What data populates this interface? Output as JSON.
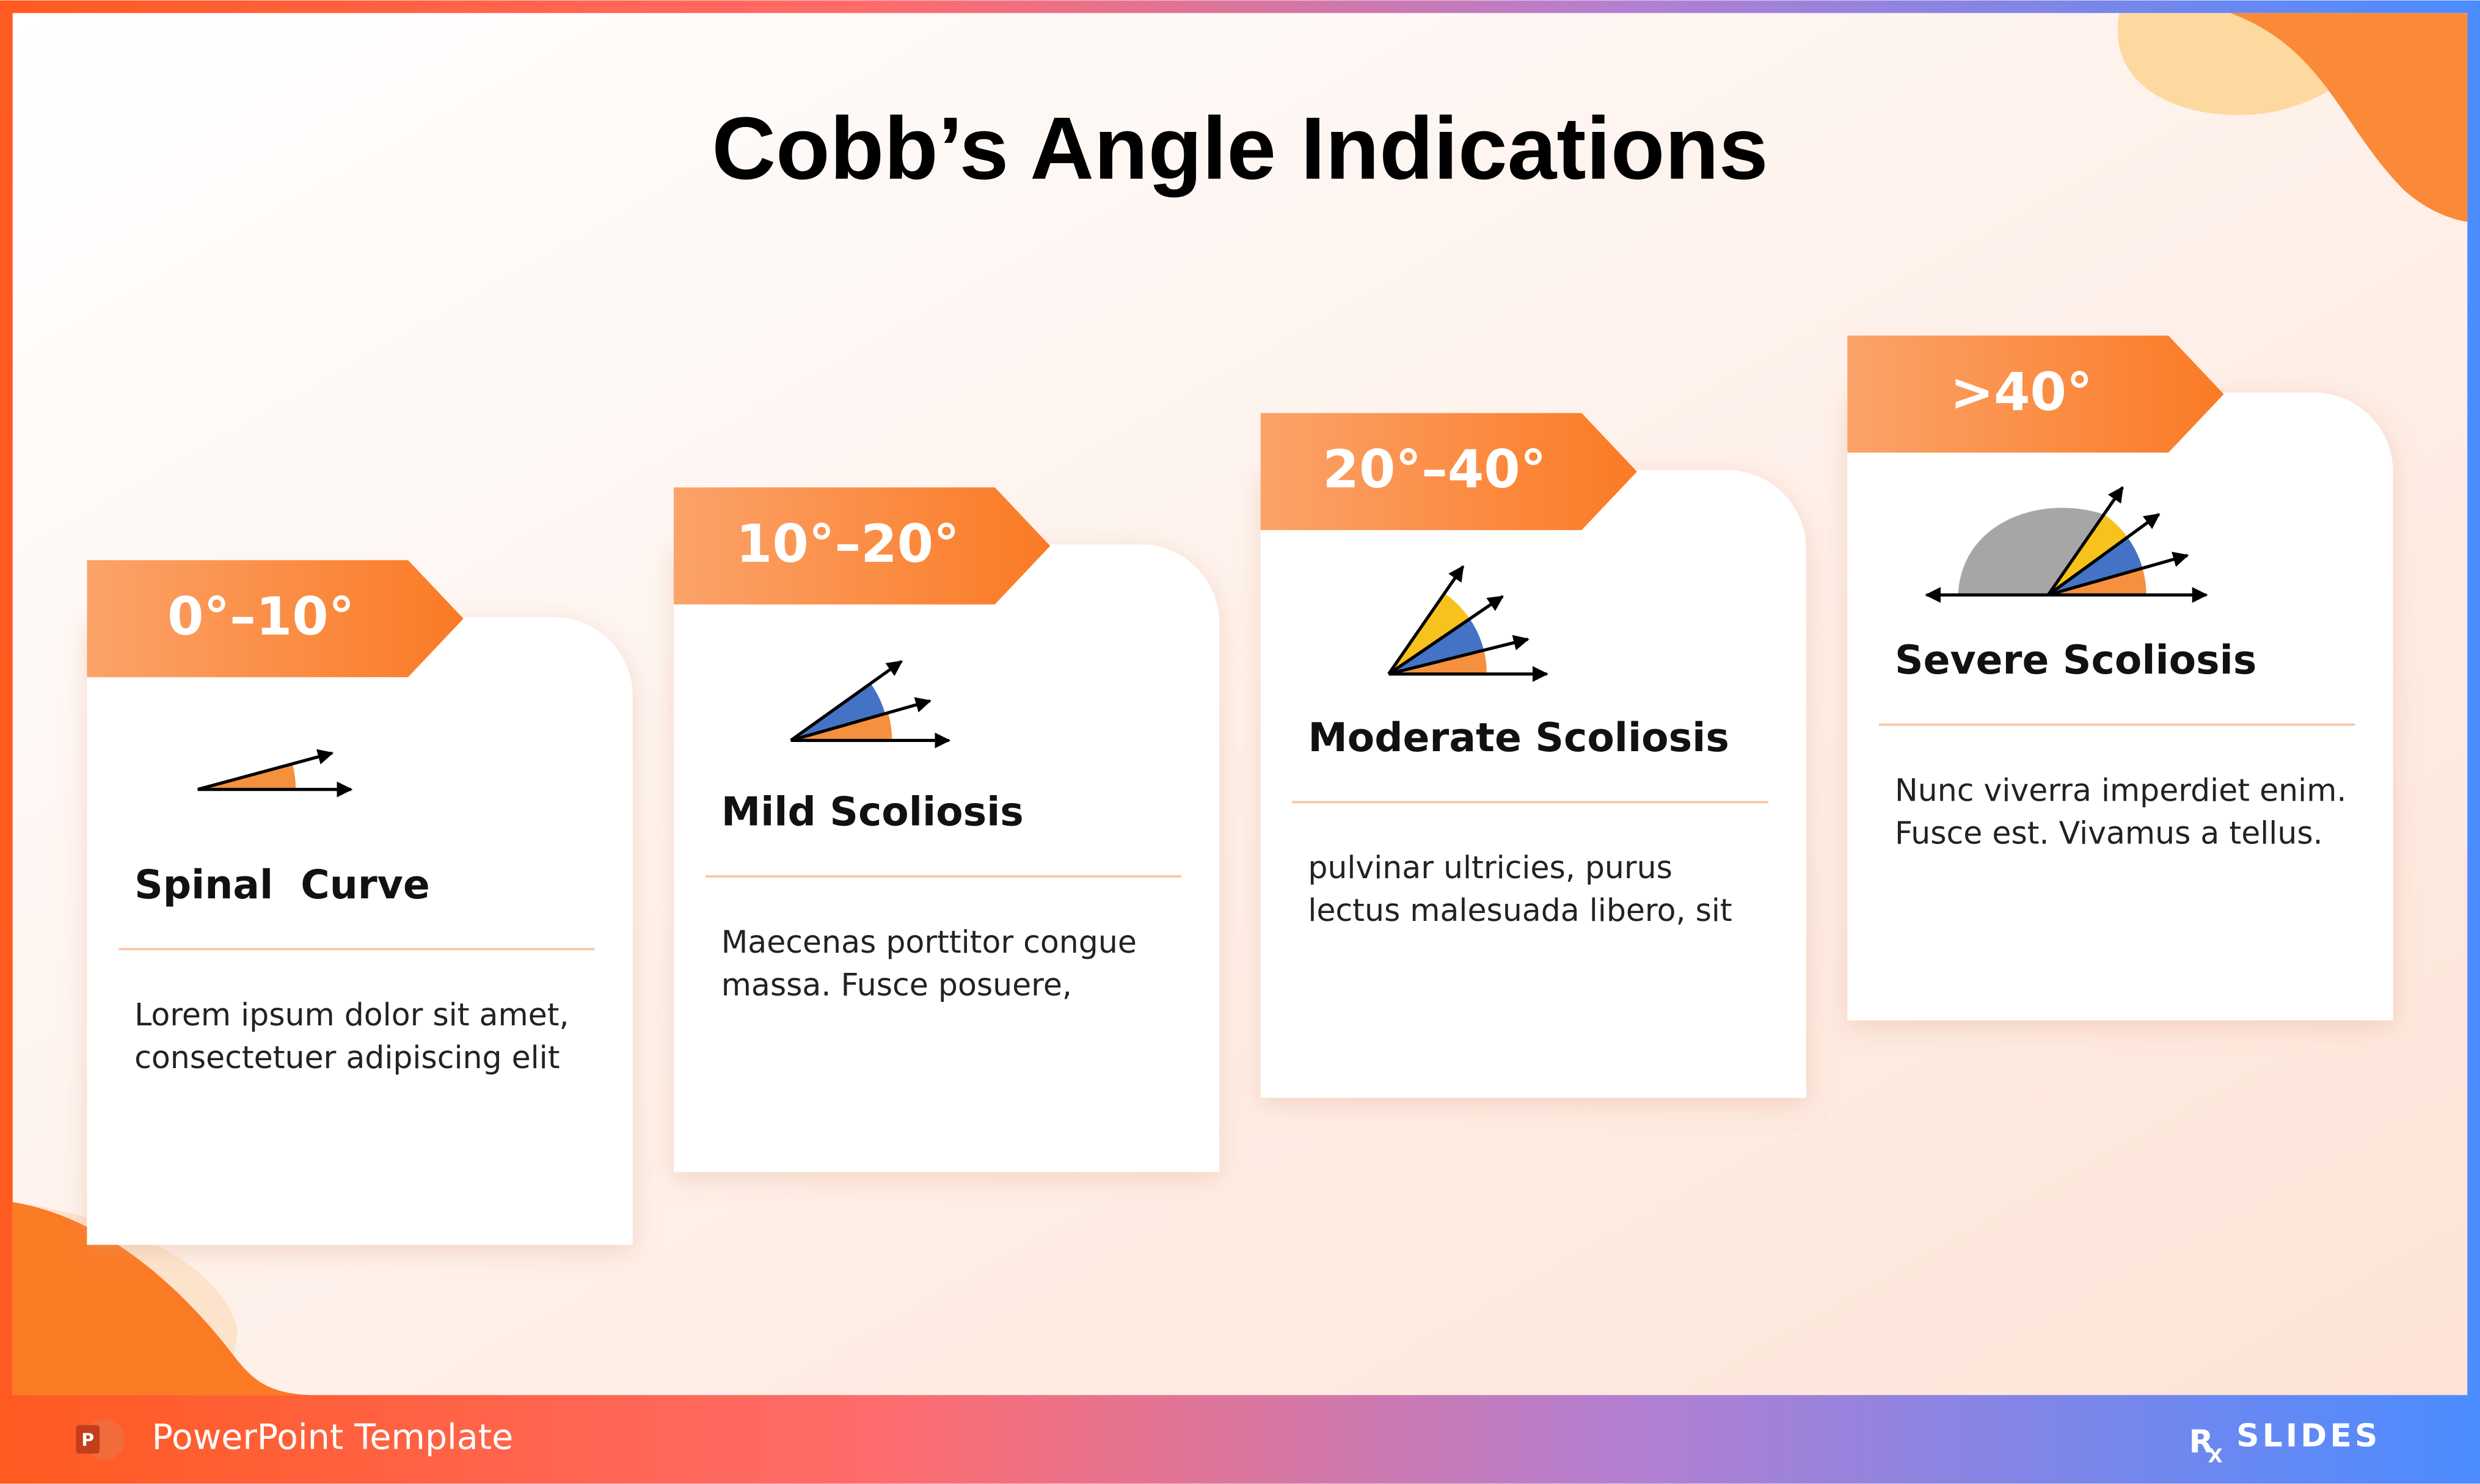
{
  "header": {
    "title": "Cobb’s Angle Indications"
  },
  "cards": [
    {
      "badge": "0°–10°",
      "heading": "Spinal  Curve",
      "lines": [
        "Lorem ipsum dolor sit amet,",
        "consectetuer adipiscing elit"
      ]
    },
    {
      "badge": "10°–20°",
      "heading": "Mild Scoliosis",
      "lines": [
        "Maecenas porttitor congue",
        "massa. Fusce posuere,"
      ]
    },
    {
      "badge": "20°–40°",
      "heading": "Moderate Scoliosis",
      "lines": [
        "pulvinar ultricies, purus",
        "lectus malesuada libero, sit"
      ]
    },
    {
      "badge": ">40°",
      "heading": "Severe Scoliosis",
      "lines": [
        "Nunc viverra imperdiet enim.",
        "Fusce est. Vivamus a tellus."
      ]
    }
  ],
  "footer": {
    "label": "PowerPoint Template",
    "app_icon": "P",
    "brand_prefix": "R",
    "brand_sub": "X",
    "brand": "SLIDES"
  }
}
